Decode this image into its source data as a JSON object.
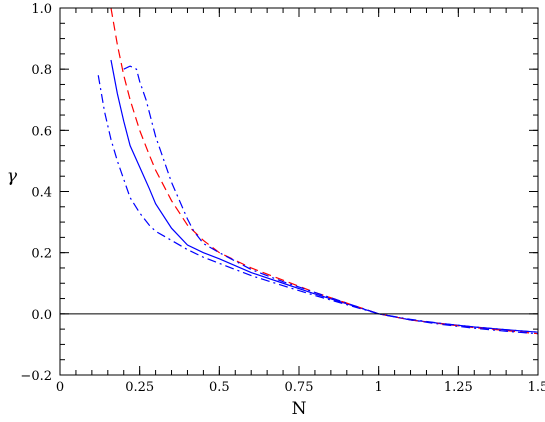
{
  "chart_data": {
    "type": "line",
    "xlabel": "N",
    "ylabel": "γ",
    "xlim": [
      0,
      1.5
    ],
    "ylim": [
      -0.2,
      1.0
    ],
    "x_ticks": [
      0,
      0.25,
      0.5,
      0.75,
      1,
      1.25,
      1.5
    ],
    "x_tick_labels": [
      "0",
      "0.25",
      "0.5",
      "0.75",
      "1",
      "1.25",
      "1.5"
    ],
    "y_ticks": [
      -0.2,
      0.0,
      0.2,
      0.4,
      0.6,
      0.8,
      1.0
    ],
    "y_tick_labels": [
      "−0.2",
      "0.0",
      "0.2",
      "0.4",
      "0.6",
      "0.8",
      "1.0"
    ],
    "grid": false,
    "reference_line": {
      "y": 0,
      "color": "#000000"
    },
    "series": [
      {
        "style": "solid",
        "color": "#0000ff",
        "x": [
          0.16,
          0.18,
          0.2,
          0.22,
          0.25,
          0.28,
          0.3,
          0.35,
          0.4,
          0.45,
          0.5,
          0.6,
          0.7,
          0.8,
          0.9,
          1.0,
          1.1,
          1.2,
          1.3,
          1.4,
          1.5
        ],
        "y": [
          0.83,
          0.72,
          0.63,
          0.55,
          0.48,
          0.41,
          0.36,
          0.28,
          0.225,
          0.2,
          0.18,
          0.135,
          0.1,
          0.065,
          0.033,
          0.0,
          -0.02,
          -0.032,
          -0.043,
          -0.052,
          -0.06
        ]
      },
      {
        "style": "dashed",
        "color": "#ff0000",
        "x": [
          0.16,
          0.18,
          0.2,
          0.22,
          0.25,
          0.28,
          0.3,
          0.35,
          0.4,
          0.45,
          0.5,
          0.6,
          0.7,
          0.8,
          0.9,
          1.0,
          1.1,
          1.2,
          1.3,
          1.4,
          1.5
        ],
        "y": [
          1.0,
          0.88,
          0.78,
          0.7,
          0.6,
          0.52,
          0.47,
          0.37,
          0.29,
          0.24,
          0.2,
          0.15,
          0.11,
          0.07,
          0.035,
          0.0,
          -0.02,
          -0.033,
          -0.045,
          -0.055,
          -0.065
        ]
      },
      {
        "style": "dashdot",
        "color": "#0000ff",
        "x": [
          0.12,
          0.14,
          0.16,
          0.18,
          0.2,
          0.22,
          0.25,
          0.28,
          0.3,
          0.35,
          0.4,
          0.45,
          0.5,
          0.6,
          0.7,
          0.8,
          0.9,
          1.0,
          1.1,
          1.2,
          1.3,
          1.4,
          1.5
        ],
        "y": [
          0.78,
          0.66,
          0.57,
          0.5,
          0.44,
          0.38,
          0.33,
          0.29,
          0.27,
          0.24,
          0.21,
          0.185,
          0.165,
          0.125,
          0.092,
          0.06,
          0.03,
          0.0,
          -0.018,
          -0.032,
          -0.043,
          -0.052,
          -0.06
        ]
      },
      {
        "style": "dashdot",
        "color": "#0000ff",
        "x": [
          0.2,
          0.22,
          0.24,
          0.25,
          0.27,
          0.3,
          0.35,
          0.4,
          0.42,
          0.45,
          0.5,
          0.6,
          0.7,
          0.8,
          0.9,
          1.0,
          1.1,
          1.2,
          1.3,
          1.4,
          1.5
        ],
        "y": [
          0.8,
          0.81,
          0.8,
          0.76,
          0.7,
          0.58,
          0.43,
          0.31,
          0.27,
          0.23,
          0.2,
          0.145,
          0.105,
          0.07,
          0.035,
          0.0,
          -0.02,
          -0.035,
          -0.047,
          -0.057,
          -0.065
        ]
      }
    ]
  }
}
